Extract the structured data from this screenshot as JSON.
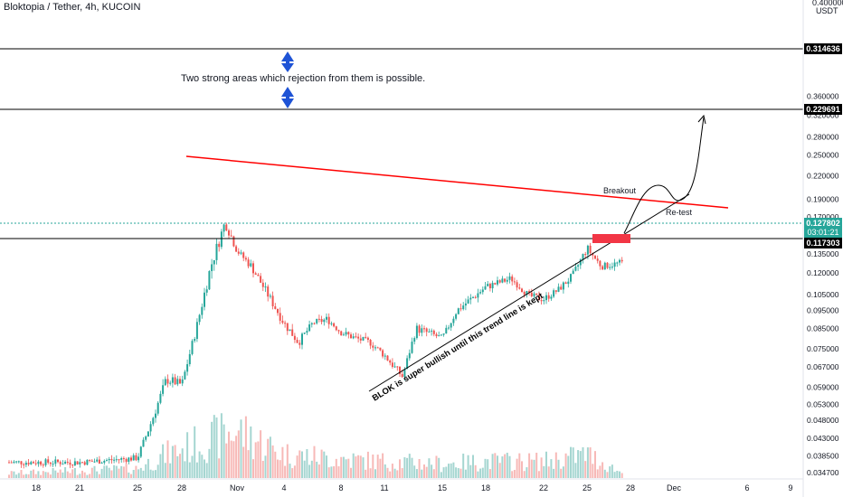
{
  "header": {
    "symbol_title": "Bloktopia / Tether, 4h, KUCOIN",
    "currency": "USDT",
    "currency_prefix": "0.400000"
  },
  "colors": {
    "up": "#26a69a",
    "down": "#ef5350",
    "resistance_line": "#ff0000",
    "trend_line": "#000000",
    "arrow": "#1e53d6",
    "retest_box": "#f23645",
    "current_price_line": "#26a69a"
  },
  "annotations": {
    "zones_text": "Two strong areas which rejection from them is possible.",
    "breakout": "Breakout",
    "retest": "Re-test",
    "trend_text": "BLOK is super bullish until this trend line is kept"
  },
  "price_labels": {
    "level_1": "0.314636",
    "level_2": "0.229691",
    "level_3": "0.117303",
    "current": "0.127802",
    "countdown": "03:01:21"
  },
  "chart_data": {
    "type": "candlestick",
    "title": "Bloktopia / Tether, 4h, KUCOIN",
    "y_axis": {
      "scale": "log",
      "unit": "USDT",
      "ticks": [
        "0.360000",
        "0.320000",
        "0.280000",
        "0.250000",
        "0.220000",
        "0.190000",
        "0.170000",
        "0.150000",
        "0.135000",
        "0.120000",
        "0.105000",
        "0.095000",
        "0.085000",
        "0.075000",
        "0.067000",
        "0.059000",
        "0.053000",
        "0.048000",
        "0.043000",
        "0.038500",
        "0.034700"
      ]
    },
    "x_axis": {
      "ticks": [
        "18",
        "21",
        "25",
        "28",
        "Nov",
        "4",
        "8",
        "11",
        "15",
        "18",
        "22",
        "25",
        "28",
        "Dec",
        "6",
        "9"
      ]
    },
    "horizontal_levels": [
      0.314636,
      0.229691,
      0.117303
    ],
    "current_price": 0.127802,
    "price_path": [
      [
        "18",
        0.037
      ],
      [
        "21",
        0.037
      ],
      [
        "25",
        0.038
      ],
      [
        "26",
        0.048
      ],
      [
        "27",
        0.062
      ],
      [
        "28",
        0.06
      ],
      [
        "29",
        0.085
      ],
      [
        "30",
        0.125
      ],
      [
        "31",
        0.165
      ],
      [
        "Nov 1",
        0.138
      ],
      [
        "Nov 2",
        0.125
      ],
      [
        "Nov 3",
        0.105
      ],
      [
        "4",
        0.088
      ],
      [
        "5",
        0.078
      ],
      [
        "6",
        0.088
      ],
      [
        "7",
        0.09
      ],
      [
        "8",
        0.083
      ],
      [
        "9",
        0.08
      ],
      [
        "10",
        0.078
      ],
      [
        "11",
        0.072
      ],
      [
        "12",
        0.063
      ],
      [
        "13",
        0.085
      ],
      [
        "15",
        0.08
      ],
      [
        "16",
        0.095
      ],
      [
        "18",
        0.11
      ],
      [
        "19",
        0.116
      ],
      [
        "20",
        0.104
      ],
      [
        "22",
        0.102
      ],
      [
        "23",
        0.108
      ],
      [
        "24",
        0.118
      ],
      [
        "25",
        0.14
      ],
      [
        "26",
        0.125
      ],
      [
        "27",
        0.128
      ]
    ],
    "volume_path": [
      [
        "18",
        0.1
      ],
      [
        "25",
        0.2
      ],
      [
        "27",
        0.5
      ],
      [
        "28",
        0.6
      ],
      [
        "Nov",
        1.0
      ],
      [
        "4",
        0.5
      ],
      [
        "8",
        0.4
      ],
      [
        "11",
        0.35
      ],
      [
        "15",
        0.3
      ],
      [
        "18",
        0.35
      ],
      [
        "22",
        0.35
      ],
      [
        "25",
        0.5
      ],
      [
        "27",
        0.1
      ]
    ]
  }
}
